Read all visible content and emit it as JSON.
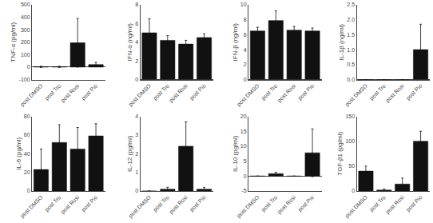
{
  "chart_data": [
    {
      "type": "bar",
      "ylabel": "TNF-α (pg/ml)",
      "categories": [
        "post DMSO",
        "post Tro",
        "post Rosi",
        "post Pio"
      ],
      "values": [
        2,
        2,
        195,
        20
      ],
      "errors": [
        5,
        5,
        195,
        18
      ],
      "color": "#111111",
      "ylim": [
        -100,
        500
      ],
      "yticks": [
        -100,
        0,
        100,
        200,
        300,
        400,
        500
      ],
      "grid": false
    },
    {
      "type": "bar",
      "ylabel": "IFN-α (ng/ml)",
      "categories": [
        "post DMSO",
        "post Tro",
        "post Rosi",
        "post Pio"
      ],
      "values": [
        5.0,
        4.2,
        3.8,
        4.5
      ],
      "errors": [
        1.5,
        0.5,
        0.4,
        0.4
      ],
      "color": "#111111",
      "ylim": [
        0,
        8
      ],
      "yticks": [
        0,
        2,
        4,
        6,
        8
      ],
      "grid": false
    },
    {
      "type": "bar",
      "ylabel": "IFN-β (ng/ml)",
      "categories": [
        "post DMSO",
        "post Tro",
        "post Rosi",
        "post Pio"
      ],
      "values": [
        6.5,
        7.9,
        6.6,
        6.5
      ],
      "errors": [
        0.5,
        1.3,
        0.5,
        0.4
      ],
      "color": "#111111",
      "ylim": [
        0,
        10
      ],
      "yticks": [
        0,
        2,
        4,
        6,
        8,
        10
      ],
      "grid": false
    },
    {
      "type": "bar",
      "ylabel": "IL-1β (ng/ml)",
      "categories": [
        "post DMSO",
        "post Tro",
        "post Rosi",
        "post Pio"
      ],
      "values": [
        0.0,
        0.0,
        0.0,
        1.0
      ],
      "errors": [
        0.0,
        0.0,
        0.0,
        0.85
      ],
      "color": "#111111",
      "ylim": [
        0,
        2.5
      ],
      "yticks": [
        {
          "value": 0,
          "label": "0.0"
        },
        0.5,
        {
          "value": 1,
          "label": "1.0"
        },
        1.5,
        {
          "value": 2,
          "label": "2.0"
        },
        2.5
      ],
      "grid": false
    },
    {
      "type": "bar",
      "ylabel": "IL-6 (pg/ml)",
      "categories": [
        "post DMSO",
        "post Tro",
        "post Rosi",
        "post Pio"
      ],
      "values": [
        23,
        52,
        45,
        59
      ],
      "errors": [
        22,
        19,
        23,
        13
      ],
      "color": "#111111",
      "ylim": [
        0,
        80
      ],
      "yticks": [
        0,
        20,
        40,
        60,
        80
      ],
      "grid": false
    },
    {
      "type": "bar",
      "ylabel": "IL-12 (pg/ml)",
      "categories": [
        "post DMSO",
        "post Tro",
        "post Rosi",
        "post Pio"
      ],
      "values": [
        0.0,
        0.1,
        2.4,
        0.1
      ],
      "errors": [
        0.0,
        0.1,
        1.3,
        0.1
      ],
      "color": "#111111",
      "ylim": [
        0,
        4
      ],
      "yticks": [
        0,
        1,
        2,
        3,
        4
      ],
      "grid": false
    },
    {
      "type": "bar",
      "ylabel": "IL-10 (pg/ml)",
      "categories": [
        "post DMSO",
        "post Tro",
        "post Rosi",
        "post Pio"
      ],
      "values": [
        0.0,
        0.8,
        0.0,
        7.8
      ],
      "errors": [
        0.0,
        0.5,
        0.0,
        8.0
      ],
      "color": "#111111",
      "ylim": [
        -5,
        20
      ],
      "yticks": [
        -5,
        0,
        5,
        10,
        15,
        20
      ],
      "grid": false
    },
    {
      "type": "bar",
      "ylabel": "TGF-β1 (pg/ml)",
      "categories": [
        "post DMSO",
        "post Tro",
        "post Rosi",
        "post Pio"
      ],
      "values": [
        40,
        2,
        14,
        100
      ],
      "errors": [
        10,
        2,
        12,
        20
      ],
      "color": "#111111",
      "ylim": [
        0,
        150
      ],
      "yticks": [
        0,
        50,
        100,
        150
      ],
      "grid": false
    }
  ]
}
